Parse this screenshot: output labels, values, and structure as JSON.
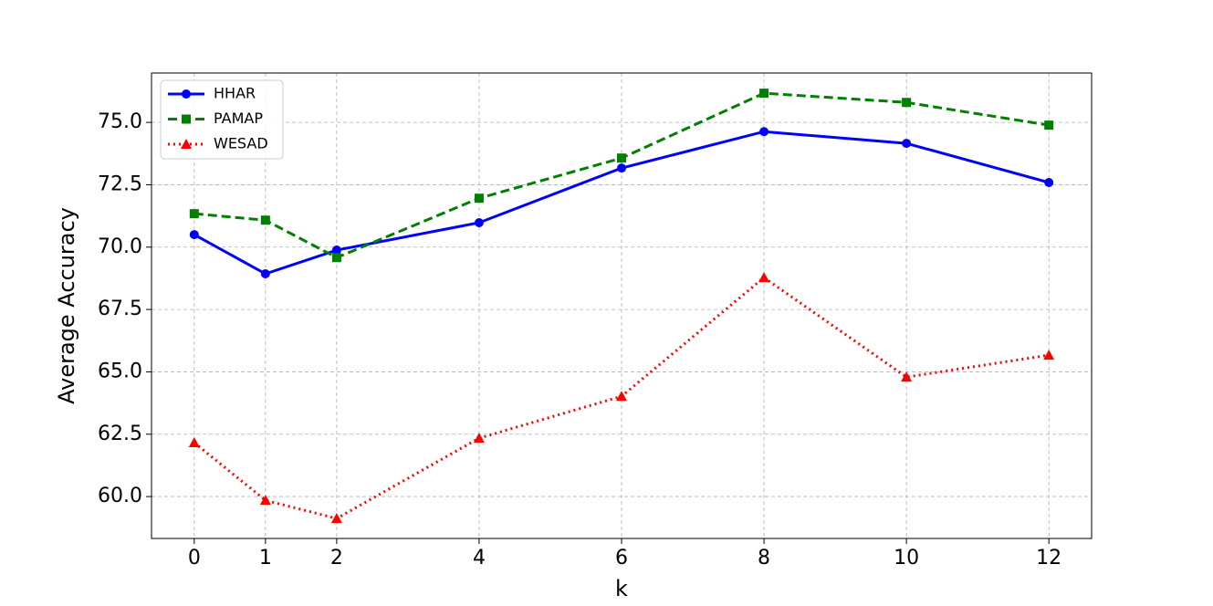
{
  "chart_data": {
    "type": "line",
    "x_label": "k",
    "y_label": "Average Accuracy",
    "x": [
      0,
      1,
      2,
      4,
      6,
      8,
      10,
      12
    ],
    "series": [
      {
        "name": "HHAR",
        "color": "#0000ff",
        "linestyle": "solid",
        "marker": "circle",
        "values": [
          70.5,
          68.93,
          69.88,
          70.98,
          73.17,
          74.63,
          74.16,
          72.59
        ]
      },
      {
        "name": "PAMAP",
        "color": "#008000",
        "linestyle": "dashed",
        "marker": "square",
        "values": [
          71.34,
          71.08,
          69.58,
          71.96,
          73.57,
          76.17,
          75.8,
          74.89
        ]
      },
      {
        "name": "WESAD",
        "color": "#ff0000",
        "linestyle": "dotted",
        "marker": "triangle",
        "values": [
          62.16,
          59.85,
          59.12,
          62.34,
          64.02,
          68.78,
          64.79,
          65.67
        ]
      }
    ],
    "xlim": [
      -0.6,
      12.6
    ],
    "ylim": [
      58.32,
      76.98
    ],
    "xticks": [
      0,
      1,
      2,
      4,
      6,
      8,
      10,
      12
    ],
    "yticks": [
      {
        "value": 60,
        "label": "60.0"
      },
      62.5,
      {
        "value": 65,
        "label": "65.0"
      },
      67.5,
      {
        "value": 70,
        "label": "70.0"
      },
      72.5,
      {
        "value": 75,
        "label": "75.0"
      }
    ],
    "grid": true,
    "legend": "upper-left"
  }
}
